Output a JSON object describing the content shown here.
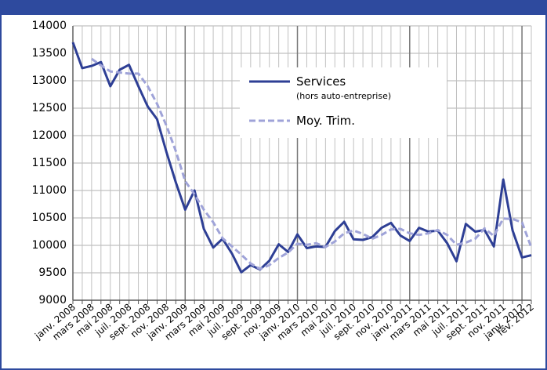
{
  "chart_data": {
    "type": "line",
    "categories": [
      "janv. 2008",
      null,
      "mars 2008",
      null,
      "mai 2008",
      null,
      "juil. 2008",
      null,
      "sept. 2008",
      null,
      "nov. 2008",
      null,
      "janv. 2009",
      null,
      "mars 2009",
      null,
      "mai 2009",
      null,
      "juil. 2009",
      null,
      "sept. 2009",
      null,
      "nov. 2009",
      null,
      "janv. 2010",
      null,
      "mars 2010",
      null,
      "mai 2010",
      null,
      "juil. 2010",
      null,
      "sept. 2010",
      null,
      "nov. 2010",
      null,
      "janv. 2011",
      null,
      "mars 2011",
      null,
      "mai 2011",
      null,
      "juil. 2011",
      null,
      "sept. 2011",
      null,
      "nov. 2011",
      null,
      "janv. 2012",
      "fév. 2012"
    ],
    "series": [
      {
        "name": "Services",
        "note": "(hors auto-entreprise)",
        "color": "#2e3f95",
        "dashed": false,
        "values": [
          13700,
          13230,
          13270,
          13340,
          12900,
          13200,
          13290,
          12900,
          12530,
          12300,
          11700,
          11150,
          10650,
          11000,
          10300,
          9960,
          10120,
          9850,
          9510,
          9640,
          9560,
          9720,
          10020,
          9880,
          10200,
          9950,
          9980,
          9970,
          10260,
          10430,
          10110,
          10100,
          10150,
          10320,
          10410,
          10180,
          10080,
          10320,
          10250,
          10270,
          10040,
          9710,
          10390,
          10250,
          10280,
          9980,
          11200,
          10270,
          9780,
          9820
        ]
      },
      {
        "name": "Moy. Trim.",
        "color": "#9fa3d8",
        "dashed": true,
        "values": [
          null,
          null,
          13400,
          13280,
          13170,
          13150,
          13130,
          13130,
          12900,
          12580,
          12180,
          11720,
          11170,
          10930,
          10650,
          10420,
          10130,
          9980,
          9830,
          9670,
          9570,
          9640,
          9770,
          9870,
          10030,
          10010,
          10040,
          9970,
          10070,
          10220,
          10270,
          10210,
          10120,
          10190,
          10290,
          10300,
          10220,
          10190,
          10220,
          10280,
          10190,
          10010,
          10050,
          10120,
          10310,
          10170,
          10490,
          10480,
          10420,
          9960
        ]
      }
    ],
    "ylim": [
      9000,
      14000
    ],
    "yticks": [
      9000,
      9500,
      10000,
      10500,
      11000,
      11500,
      12000,
      12500,
      13000,
      13500,
      14000
    ],
    "grid": true
  }
}
